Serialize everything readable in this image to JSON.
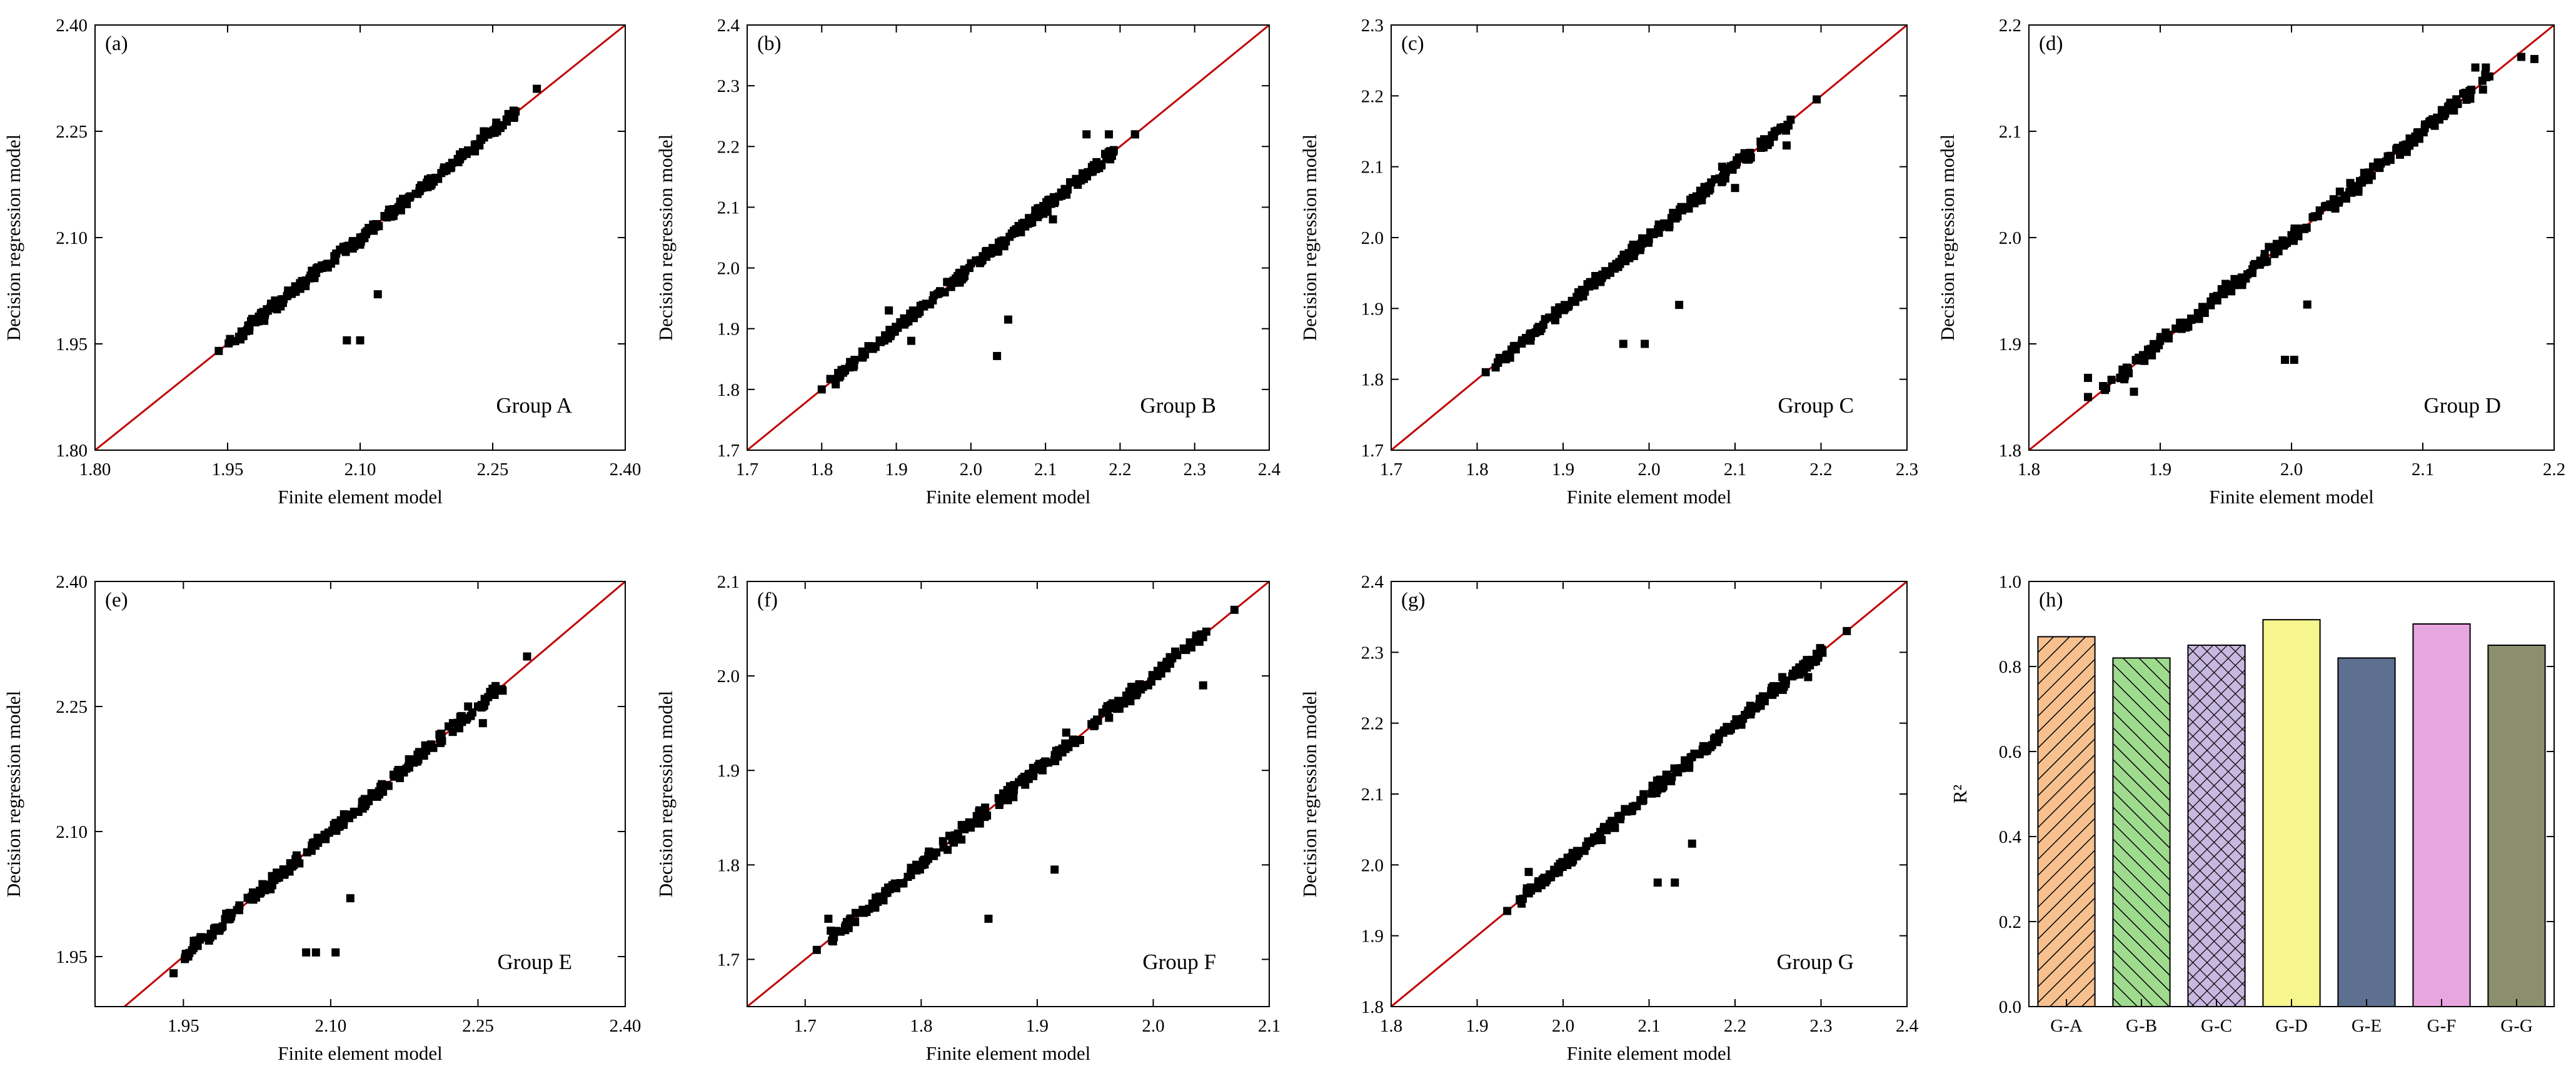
{
  "figure": {
    "axis_tick_direction": "inward",
    "bar_outline_color": "#000000"
  },
  "chart_data": [
    {
      "id": "a",
      "type": "scatter",
      "panel_label": "(a)",
      "group_label": "Group A",
      "xlabel": "Finite element model",
      "ylabel": "Decision regression model",
      "xlim": [
        1.8,
        2.4
      ],
      "ylim": [
        1.8,
        2.4
      ],
      "xticks": [
        "1.80",
        "1.95",
        "2.10",
        "2.25",
        "2.40"
      ],
      "yticks": [
        "1.80",
        "1.95",
        "2.10",
        "2.25",
        "2.40"
      ],
      "reference_line": {
        "color": "#c00000",
        "from": [
          1.8,
          1.8
        ],
        "to": [
          2.4,
          2.4
        ]
      },
      "outliers": [
        [
          2.085,
          1.955
        ],
        [
          2.1,
          1.955
        ],
        [
          2.12,
          2.02
        ],
        [
          2.24,
          2.25
        ],
        [
          2.255,
          2.25
        ],
        [
          2.25,
          2.25
        ],
        [
          2.235,
          2.23
        ],
        [
          2.1,
          2.09
        ]
      ],
      "points": [
        [
          1.94,
          1.94
        ],
        [
          2.3,
          2.31
        ]
      ]
    },
    {
      "id": "b",
      "type": "scatter",
      "panel_label": "(b)",
      "group_label": "Group B",
      "xlabel": "Finite element model",
      "ylabel": "Decision regression model",
      "xlim": [
        1.7,
        2.4
      ],
      "ylim": [
        1.7,
        2.4
      ],
      "xticks": [
        "1.7",
        "1.8",
        "1.9",
        "2.0",
        "2.1",
        "2.2",
        "2.3",
        "2.4"
      ],
      "yticks": [
        "1.7",
        "1.8",
        "1.9",
        "2.0",
        "2.1",
        "2.2",
        "2.3",
        "2.4"
      ],
      "reference_line": {
        "color": "#c00000",
        "from": [
          1.7,
          1.7
        ],
        "to": [
          2.4,
          2.4
        ]
      },
      "outliers": [
        [
          2.035,
          1.855
        ],
        [
          2.05,
          1.915
        ],
        [
          2.155,
          2.22
        ],
        [
          2.185,
          2.22
        ],
        [
          2.22,
          2.22
        ],
        [
          1.89,
          1.93
        ],
        [
          1.92,
          1.88
        ],
        [
          2.11,
          2.08
        ]
      ],
      "points": [
        [
          1.8,
          1.8
        ],
        [
          2.22,
          2.22
        ]
      ]
    },
    {
      "id": "c",
      "type": "scatter",
      "panel_label": "(c)",
      "group_label": "Group C",
      "xlabel": "Finite element model",
      "ylabel": "Decision regression model",
      "xlim": [
        1.7,
        2.3
      ],
      "ylim": [
        1.7,
        2.3
      ],
      "xticks": [
        "1.7",
        "1.8",
        "1.9",
        "2.0",
        "2.1",
        "2.2",
        "2.3"
      ],
      "yticks": [
        "1.7",
        "1.8",
        "1.9",
        "2.0",
        "2.1",
        "2.2",
        "2.3"
      ],
      "reference_line": {
        "color": "#c00000",
        "from": [
          1.7,
          1.7
        ],
        "to": [
          2.3,
          2.3
        ]
      },
      "outliers": [
        [
          1.97,
          1.85
        ],
        [
          1.995,
          1.85
        ],
        [
          2.035,
          1.905
        ],
        [
          2.16,
          2.13
        ],
        [
          2.1,
          2.07
        ],
        [
          2.085,
          2.1
        ]
      ],
      "points": [
        [
          1.81,
          1.81
        ],
        [
          2.195,
          2.195
        ]
      ]
    },
    {
      "id": "d",
      "type": "scatter",
      "panel_label": "(d)",
      "group_label": "Group D",
      "xlabel": "Finite element model",
      "ylabel": "Decision regression model",
      "xlim": [
        1.8,
        2.2
      ],
      "ylim": [
        1.8,
        2.2
      ],
      "xticks": [
        "1.8",
        "1.9",
        "2.0",
        "2.1",
        "2.2"
      ],
      "yticks": [
        "1.8",
        "1.9",
        "2.0",
        "2.1",
        "2.2"
      ],
      "reference_line": {
        "color": "#c00000",
        "from": [
          1.8,
          1.8
        ],
        "to": [
          2.2,
          2.2
        ]
      },
      "outliers": [
        [
          1.995,
          1.885
        ],
        [
          2.002,
          1.885
        ],
        [
          2.012,
          1.937
        ],
        [
          1.88,
          1.855
        ],
        [
          2.14,
          2.16
        ],
        [
          2.148,
          2.16
        ],
        [
          2.185,
          2.168
        ],
        [
          1.845,
          1.868
        ]
      ],
      "points": [
        [
          1.845,
          1.85
        ],
        [
          2.175,
          2.17
        ]
      ]
    },
    {
      "id": "e",
      "type": "scatter",
      "panel_label": "(e)",
      "group_label": "Group E",
      "xlabel": "Finite element model",
      "ylabel": "Decision regression model",
      "xlim": [
        1.86,
        2.4
      ],
      "ylim": [
        1.89,
        2.4
      ],
      "xticks": [
        "1.95",
        "2.10",
        "2.25",
        "2.40"
      ],
      "yticks": [
        "1.95",
        "2.10",
        "2.25",
        "2.40"
      ],
      "reference_line": {
        "color": "#c00000",
        "from": [
          1.86,
          1.86
        ],
        "to": [
          2.4,
          2.4
        ]
      },
      "outliers": [
        [
          2.075,
          1.955
        ],
        [
          2.085,
          1.955
        ],
        [
          2.105,
          1.955
        ],
        [
          2.12,
          2.02
        ],
        [
          2.24,
          2.25
        ],
        [
          2.255,
          2.25
        ],
        [
          2.255,
          2.23
        ],
        [
          2.25,
          2.25
        ]
      ],
      "points": [
        [
          1.94,
          1.93
        ],
        [
          2.3,
          2.31
        ]
      ]
    },
    {
      "id": "f",
      "type": "scatter",
      "panel_label": "(f)",
      "group_label": "Group F",
      "xlabel": "Finite element model",
      "ylabel": "Decision regression model",
      "xlim": [
        1.65,
        2.1
      ],
      "ylim": [
        1.65,
        2.1
      ],
      "xticks": [
        "1.7",
        "1.8",
        "1.9",
        "2.0",
        "2.1"
      ],
      "yticks": [
        "1.7",
        "1.8",
        "1.9",
        "2.0",
        "2.1"
      ],
      "reference_line": {
        "color": "#c00000",
        "from": [
          1.65,
          1.65
        ],
        "to": [
          2.1,
          2.1
        ]
      },
      "outliers": [
        [
          1.858,
          1.743
        ],
        [
          1.915,
          1.795
        ],
        [
          2.043,
          1.99
        ],
        [
          1.72,
          1.743
        ],
        [
          1.925,
          1.94
        ]
      ],
      "points": [
        [
          1.71,
          1.71
        ],
        [
          2.07,
          2.07
        ]
      ]
    },
    {
      "id": "g",
      "type": "scatter",
      "panel_label": "(g)",
      "group_label": "Group G",
      "xlabel": "Finite element model",
      "ylabel": "Decision regression model",
      "xlim": [
        1.8,
        2.4
      ],
      "ylim": [
        1.8,
        2.4
      ],
      "xticks": [
        "1.8",
        "1.9",
        "2.0",
        "2.1",
        "2.2",
        "2.3",
        "2.4"
      ],
      "yticks": [
        "1.8",
        "1.9",
        "2.0",
        "2.1",
        "2.2",
        "2.3",
        "2.4"
      ],
      "reference_line": {
        "color": "#c00000",
        "from": [
          1.8,
          1.8
        ],
        "to": [
          2.4,
          2.4
        ]
      },
      "outliers": [
        [
          2.11,
          1.975
        ],
        [
          2.13,
          1.975
        ],
        [
          2.15,
          2.03
        ],
        [
          2.255,
          2.265
        ],
        [
          2.285,
          2.265
        ],
        [
          2.275,
          2.275
        ],
        [
          1.96,
          1.99
        ]
      ],
      "points": [
        [
          1.935,
          1.935
        ],
        [
          2.33,
          2.33
        ]
      ]
    },
    {
      "id": "h",
      "type": "bar",
      "panel_label": "(h)",
      "ylabel": "R²",
      "ylim": [
        0.0,
        1.0
      ],
      "yticks": [
        "0.0",
        "0.2",
        "0.4",
        "0.6",
        "0.8",
        "1.0"
      ],
      "categories": [
        "G-A",
        "G-B",
        "G-C",
        "G-D",
        "G-E",
        "G-F",
        "G-G"
      ],
      "values": [
        0.87,
        0.82,
        0.85,
        0.91,
        0.82,
        0.9,
        0.85
      ],
      "colors": [
        "#f6c08f",
        "#9fdb8f",
        "#c8b8e0",
        "#f6f58e",
        "#5e7090",
        "#e8a6e0",
        "#8b8f6c"
      ],
      "hatches": [
        "diagonal-right",
        "diagonal-left",
        "crosshatch",
        "none",
        "none",
        "none",
        "none"
      ]
    }
  ]
}
